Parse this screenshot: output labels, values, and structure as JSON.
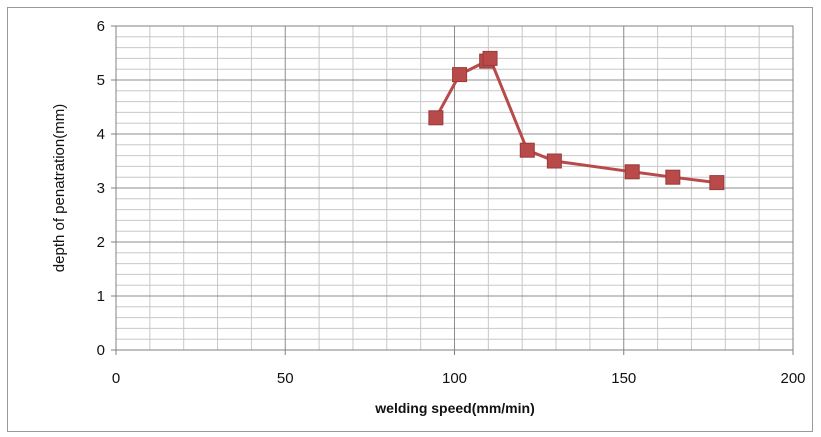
{
  "chart_data": {
    "type": "line",
    "title": "",
    "xlabel": "welding speed(mm/min)",
    "ylabel": "depth of penatration(mm)",
    "xlim": [
      0,
      200
    ],
    "ylim": [
      0,
      6
    ],
    "x_ticks": [
      0,
      50,
      100,
      150,
      200
    ],
    "y_ticks": [
      0,
      1,
      2,
      3,
      4,
      5,
      6
    ],
    "grid": true,
    "legend": "none",
    "series": [
      {
        "color": "#b84a4a",
        "marker": "square",
        "x": [
          94.5,
          101.5,
          109.5,
          110.5,
          121.5,
          129.5,
          152.5,
          164.5,
          177.5
        ],
        "y": [
          4.3,
          5.1,
          5.35,
          5.4,
          3.7,
          3.5,
          3.3,
          3.2,
          3.1
        ]
      }
    ]
  }
}
